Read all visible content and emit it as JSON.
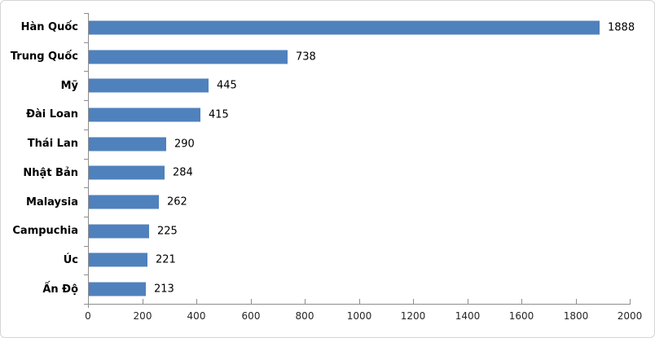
{
  "chart_data": {
    "type": "bar",
    "orientation": "horizontal",
    "title": "",
    "xlabel": "",
    "ylabel": "",
    "categories": [
      "Hàn Quốc",
      "Trung Quốc",
      "Mỹ",
      "Đài Loan",
      "Thái Lan",
      "Nhật Bản",
      "Malaysia",
      "Campuchia",
      "Úc",
      "Ấn Độ"
    ],
    "values": [
      1888,
      738,
      445,
      415,
      290,
      284,
      262,
      225,
      221,
      213
    ],
    "data_labels": [
      "1888",
      "738",
      "445",
      "415",
      "290",
      "284",
      "262",
      "225",
      "221",
      "213"
    ],
    "xlim": [
      0,
      2000
    ],
    "x_ticks": [
      0,
      200,
      400,
      600,
      800,
      1000,
      1200,
      1400,
      1600,
      1800,
      2000
    ],
    "grid": false,
    "legend": false,
    "colors": {
      "bar": "#4f81bd",
      "axis": "#8e8e8e",
      "category_label": "#000000",
      "value_label": "#000000",
      "tick_label": "#262626",
      "background": "#ffffff",
      "frame_border": "#d5d5d5"
    }
  }
}
